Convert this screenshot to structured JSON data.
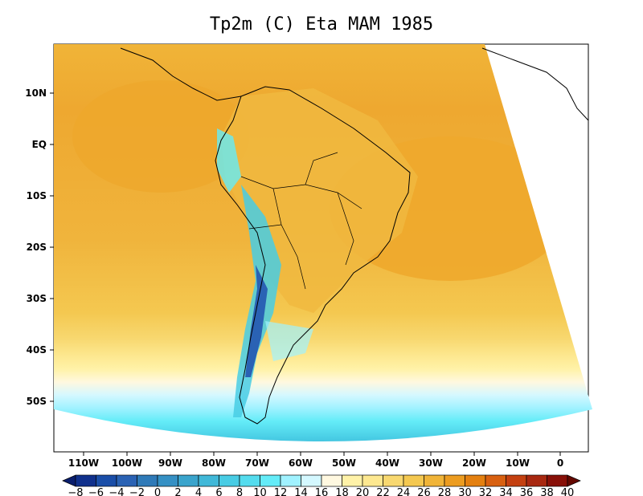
{
  "title": "Tp2m (C) Eta MAM 1985",
  "map": {
    "variable": "Tp2m",
    "units": "C",
    "model": "Eta",
    "season": "MAM",
    "year": "1985",
    "lon_range": [
      -117,
      6
    ],
    "lat_range": [
      -61,
      15
    ],
    "lat_ticks": [
      "10N",
      "EQ",
      "10S",
      "20S",
      "30S",
      "40S",
      "50S"
    ],
    "lon_ticks": [
      "110W",
      "100W",
      "90W",
      "80W",
      "70W",
      "60W",
      "50W",
      "40W",
      "30W",
      "20W",
      "10W",
      "0"
    ]
  },
  "colorbar": {
    "labels": [
      "−8",
      "−6",
      "−4",
      "−2",
      "0",
      "2",
      "4",
      "6",
      "8",
      "10",
      "12",
      "14",
      "16",
      "18",
      "20",
      "22",
      "24",
      "26",
      "28",
      "30",
      "32",
      "34",
      "36",
      "38",
      "40"
    ],
    "colors": [
      "#0a1e6e",
      "#10308c",
      "#1a4ea8",
      "#2a62b4",
      "#2f7ab8",
      "#3590c4",
      "#3aa4cc",
      "#40b8d8",
      "#48cce4",
      "#54dcee",
      "#64ecf8",
      "#a0f2ff",
      "#d4f8ff",
      "#fff8e0",
      "#fff2a8",
      "#fde890",
      "#f8d870",
      "#f4c850",
      "#f0b438",
      "#ec9c20",
      "#e48010",
      "#d86010",
      "#c44010",
      "#a82810",
      "#881008",
      "#640800"
    ]
  }
}
